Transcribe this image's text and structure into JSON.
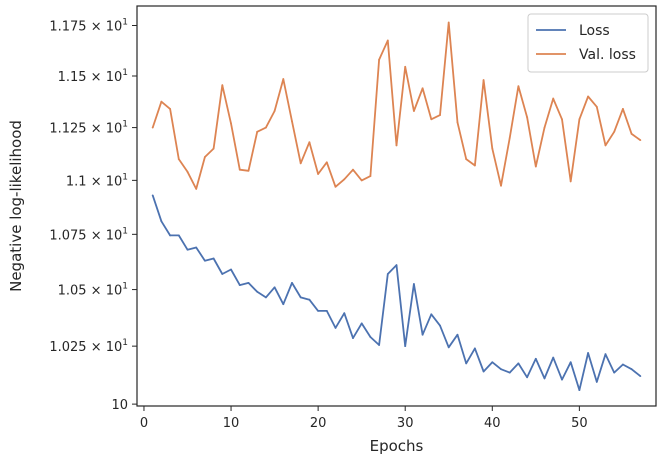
{
  "chart_data": {
    "type": "line",
    "title": "",
    "xlabel": "Epochs",
    "ylabel": "Negative log-likelihood",
    "xlim": [
      -0.8,
      58.8
    ],
    "ylim": [
      9.992,
      11.848
    ],
    "yscale": "log",
    "grid": false,
    "legend_position": "top-right",
    "x_ticks": [
      {
        "value": 0,
        "label": "0"
      },
      {
        "value": 10,
        "label": "10"
      },
      {
        "value": 20,
        "label": "20"
      },
      {
        "value": 30,
        "label": "30"
      },
      {
        "value": 40,
        "label": "40"
      },
      {
        "value": 50,
        "label": "50"
      }
    ],
    "y_ticks": [
      {
        "value": 10.0,
        "mantissa": "10",
        "exponent": ""
      },
      {
        "value": 10.25,
        "mantissa": "1.025 × 10",
        "exponent": "1"
      },
      {
        "value": 10.5,
        "mantissa": "1.05 × 10",
        "exponent": "1"
      },
      {
        "value": 10.75,
        "mantissa": "1.075 × 10",
        "exponent": "1"
      },
      {
        "value": 11.0,
        "mantissa": "1.1 × 10",
        "exponent": "1"
      },
      {
        "value": 11.25,
        "mantissa": "1.125 × 10",
        "exponent": "1"
      },
      {
        "value": 11.5,
        "mantissa": "1.15 × 10",
        "exponent": "1"
      },
      {
        "value": 11.75,
        "mantissa": "1.175 × 10",
        "exponent": "1"
      }
    ],
    "x": [
      1,
      2,
      3,
      4,
      5,
      6,
      7,
      8,
      9,
      10,
      11,
      12,
      13,
      14,
      15,
      16,
      17,
      18,
      19,
      20,
      21,
      22,
      23,
      24,
      25,
      26,
      27,
      28,
      29,
      30,
      31,
      32,
      33,
      34,
      35,
      36,
      37,
      38,
      39,
      40,
      41,
      42,
      43,
      44,
      45,
      46,
      47,
      48,
      49,
      50,
      51,
      52,
      53,
      54,
      55,
      56,
      57
    ],
    "series": [
      {
        "name": "Loss",
        "color": "#4c72b0",
        "values": [
          10.93,
          10.81,
          10.745,
          10.745,
          10.68,
          10.69,
          10.63,
          10.64,
          10.57,
          10.59,
          10.52,
          10.53,
          10.49,
          10.465,
          10.51,
          10.435,
          10.53,
          10.465,
          10.455,
          10.405,
          10.405,
          10.33,
          10.395,
          10.285,
          10.35,
          10.29,
          10.255,
          10.57,
          10.61,
          10.25,
          10.525,
          10.3,
          10.39,
          10.34,
          10.245,
          10.3,
          10.175,
          10.24,
          10.14,
          10.18,
          10.15,
          10.135,
          10.175,
          10.115,
          10.195,
          10.11,
          10.2,
          10.105,
          10.18,
          10.06,
          10.22,
          10.095,
          10.215,
          10.135,
          10.17,
          10.15,
          10.12
        ]
      },
      {
        "name": "Val. loss",
        "color": "#dd8452",
        "values": [
          11.25,
          11.375,
          11.34,
          11.1,
          11.04,
          10.96,
          11.11,
          11.15,
          11.455,
          11.27,
          11.05,
          11.045,
          11.23,
          11.25,
          11.33,
          11.485,
          11.28,
          11.08,
          11.18,
          11.03,
          11.085,
          10.97,
          11.005,
          11.05,
          11.0,
          11.02,
          11.58,
          11.675,
          11.165,
          11.545,
          11.33,
          11.44,
          11.29,
          11.31,
          11.765,
          11.275,
          11.1,
          11.07,
          11.48,
          11.15,
          10.975,
          11.2,
          11.45,
          11.3,
          11.065,
          11.25,
          11.39,
          11.29,
          10.995,
          11.29,
          11.4,
          11.35,
          11.165,
          11.23,
          11.34,
          11.22,
          11.19
        ]
      }
    ]
  }
}
